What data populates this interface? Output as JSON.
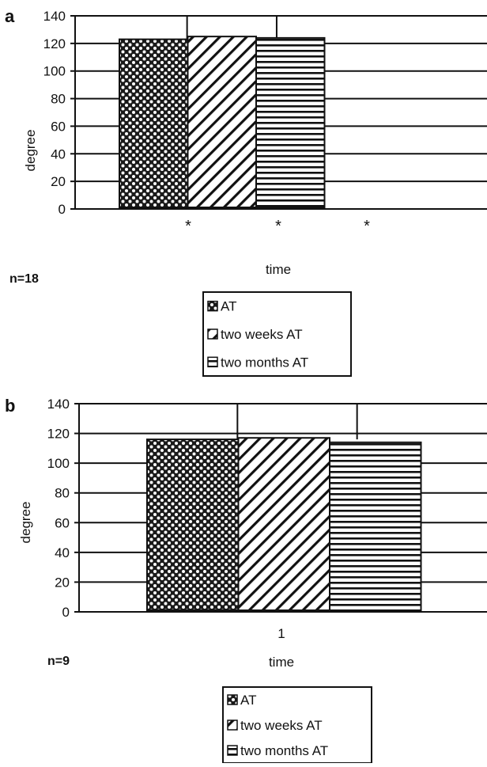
{
  "chart_data": [
    {
      "panel": "a",
      "type": "bar",
      "xlabel": "time",
      "ylabel": "degree",
      "ylim": [
        0,
        140
      ],
      "yticks": [
        0,
        20,
        40,
        60,
        80,
        100,
        120,
        140
      ],
      "categories": [
        ""
      ],
      "category_markers": [
        "*",
        "*",
        "*"
      ],
      "series": [
        {
          "name": "AT",
          "values": [
            123
          ],
          "pattern": "dots"
        },
        {
          "name": "two weeks AT",
          "values": [
            125
          ],
          "pattern": "diagonal"
        },
        {
          "name": "two months AT",
          "values": [
            124
          ],
          "pattern": "horizontal"
        }
      ],
      "annotation": "n=18",
      "grid": true,
      "legend_position": "bottom"
    },
    {
      "panel": "b",
      "type": "bar",
      "xlabel": "time",
      "ylabel": "degree",
      "ylim": [
        0,
        140
      ],
      "yticks": [
        0,
        20,
        40,
        60,
        80,
        100,
        120,
        140
      ],
      "categories": [
        "1"
      ],
      "series": [
        {
          "name": "AT",
          "values": [
            116
          ],
          "pattern": "dots"
        },
        {
          "name": "two weeks AT",
          "values": [
            117
          ],
          "pattern": "diagonal"
        },
        {
          "name": "two months AT",
          "values": [
            114
          ],
          "pattern": "horizontal"
        }
      ],
      "annotation": "n=9",
      "grid": true,
      "legend_position": "bottom"
    }
  ]
}
